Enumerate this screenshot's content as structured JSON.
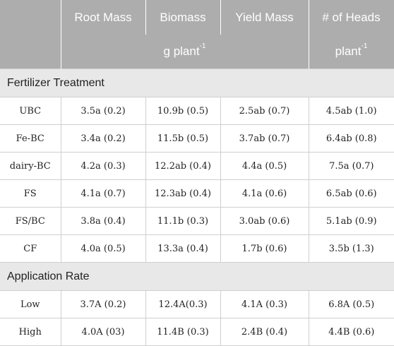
{
  "header": {
    "columns": [
      "Root Mass",
      "Biomass",
      "Yield Mass",
      "# of Heads"
    ],
    "unit_g": "g plant",
    "unit_plant": "plant",
    "unit_exp": "-1"
  },
  "sections": [
    {
      "title": "Fertilizer Treatment",
      "rows": [
        {
          "label": "UBC",
          "values": [
            "3.5a (0.2)",
            "10.9b (0.5)",
            "2.5ab (0.7)",
            "4.5ab (1.0)"
          ]
        },
        {
          "label": "Fe-BC",
          "values": [
            "3.4a (0.2)",
            "11.5b (0.5)",
            "3.7ab (0.7)",
            "6.4ab (0.8)"
          ]
        },
        {
          "label": "dairy-BC",
          "values": [
            "4.2a (0.3)",
            "12.2ab (0.4)",
            "4.4a (0.5)",
            "7.5a (0.7)"
          ]
        },
        {
          "label": "FS",
          "values": [
            "4.1a (0.7)",
            "12.3ab (0.4)",
            "4.1a (0.6)",
            "6.5ab (0.6)"
          ]
        },
        {
          "label": "FS/BC",
          "values": [
            "3.8a (0.4)",
            "11.1b (0.3)",
            "3.0ab (0.6)",
            "5.1ab (0.9)"
          ]
        },
        {
          "label": "CF",
          "values": [
            "4.0a (0.5)",
            "13.3a (0.4)",
            "1.7b (0.6)",
            "3.5b (1.3)"
          ]
        }
      ]
    },
    {
      "title": "Application Rate",
      "rows": [
        {
          "label": "Low",
          "values": [
            "3.7A (0.2)",
            "12.4A(0.3)",
            "4.1A (0.3)",
            "6.8A (0.5)"
          ]
        },
        {
          "label": "High",
          "values": [
            "4.0A (03)",
            "11.4B (0.3)",
            "2.4B (0.4)",
            "4.4B (0.6)"
          ]
        }
      ]
    }
  ]
}
